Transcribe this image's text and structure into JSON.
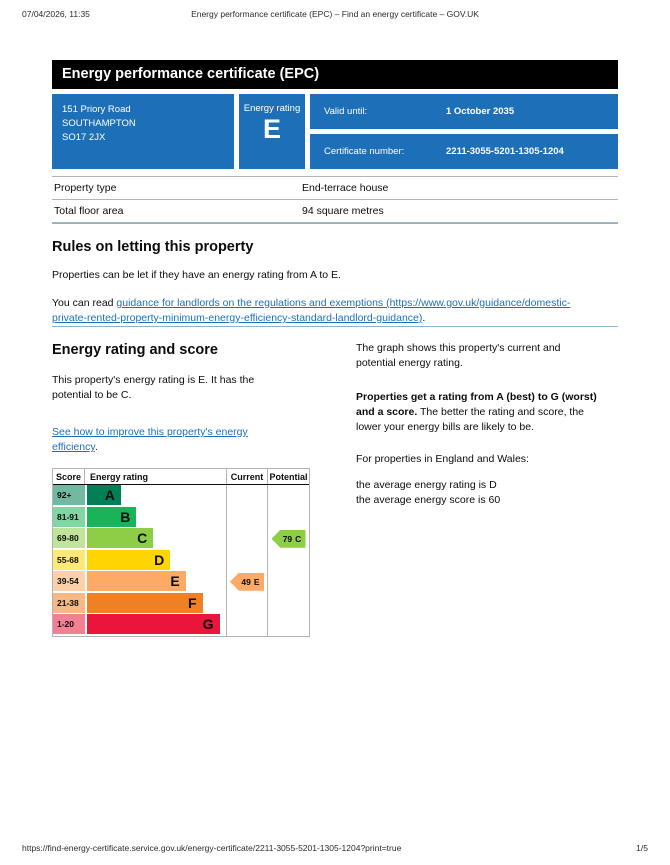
{
  "theme": {
    "accent_blue": "#1d70b8",
    "banner_bg": "#000000",
    "rule_blue": "#8cb4cd"
  },
  "print_header": {
    "datetime": "07/04/2026, 11:35",
    "title": "Energy performance certificate (EPC) – Find an energy certificate – GOV.UK"
  },
  "print_footer": {
    "url": "https://find-energy-certificate.service.gov.uk/energy-certificate/2211-3055-5201-1305-1204?print=true",
    "page_number": "1/5"
  },
  "banner": {
    "title": "Energy performance certificate (EPC)"
  },
  "summary": {
    "address_lines": [
      "151 Priory Road",
      "SOUTHAMPTON",
      "SO17 2JX"
    ],
    "energy_rating_label": "Energy rating",
    "energy_rating": "E",
    "valid_until_label": "Valid until:",
    "valid_until_value": "1 October 2035",
    "certificate_number_label": "Certificate number:",
    "certificate_number_value": "2211-3055-5201-1305-1204"
  },
  "property_table": {
    "rows": [
      {
        "label": "Property type",
        "value": "End-terrace house"
      },
      {
        "label": "Total floor area",
        "value": "94 square metres"
      }
    ]
  },
  "rules_section": {
    "heading": "Rules on letting this property",
    "paragraph1": "Properties can be let if they have an energy rating from A to E.",
    "paragraph2_prefix": "You can read ",
    "paragraph2_link": "guidance for landlords on the regulations and exemptions (https://www.gov.uk/guidance/domestic-\nprivate-rented-property-minimum-energy-efficiency-standard-landlord-guidance)",
    "paragraph2_suffix": "."
  },
  "rating_section": {
    "heading": "Energy rating and score",
    "lead": "This property's energy rating is E. It has the\npotential to be C.",
    "improve_link": "See how to improve this property's energy\nefficiency",
    "improve_suffix": ".",
    "graph_paragraph": "The graph shows this property's current and\npotential energy rating.",
    "explain_bold": "Properties get a rating from A (best) to G (worst)\nand a score.",
    "explain_rest": " The better the rating and score, the\nlower your energy bills are likely to be.",
    "england_wales": "For properties in England and Wales:",
    "averages": "the average energy rating is D\nthe average energy score is 60"
  },
  "chart_data": {
    "type": "epc-rating-bands",
    "headers": {
      "score": "Score",
      "rating": "Energy rating",
      "current": "Current",
      "potential": "Potential"
    },
    "score_cell_opacity": 0.55,
    "bands": [
      {
        "letter": "A",
        "score": "92+",
        "color": "#008054",
        "width_pct": 24
      },
      {
        "letter": "B",
        "score": "81-91",
        "color": "#19b459",
        "width_pct": 35
      },
      {
        "letter": "C",
        "score": "69-80",
        "color": "#8dce46",
        "width_pct": 47
      },
      {
        "letter": "D",
        "score": "55-68",
        "color": "#ffd500",
        "width_pct": 59
      },
      {
        "letter": "E",
        "score": "39-54",
        "color": "#fcaa65",
        "width_pct": 70
      },
      {
        "letter": "F",
        "score": "21-38",
        "color": "#ef8023",
        "width_pct": 82
      },
      {
        "letter": "G",
        "score": "1-20",
        "color": "#e9153b",
        "width_pct": 94
      }
    ],
    "current": {
      "score": "49",
      "band": "E",
      "color": "#fcaa65",
      "row_index": 4
    },
    "potential": {
      "score": "79",
      "band": "C",
      "color": "#8dce46",
      "row_index": 2
    }
  }
}
